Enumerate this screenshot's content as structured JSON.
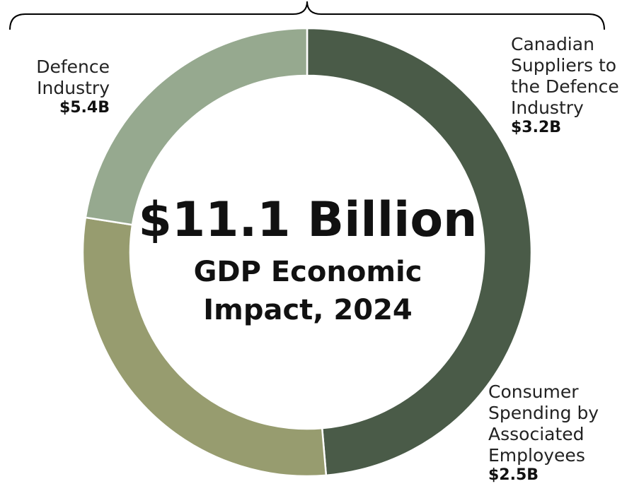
{
  "center": {
    "total": "$11.1 Billion",
    "subtitle_line1": "GDP Economic",
    "subtitle_line2": "Impact, 2024"
  },
  "chart_data": {
    "type": "pie",
    "style": "donut",
    "unit": "$B",
    "categories": [
      "Defence Industry",
      "Canadian Suppliers to the Defence Industry",
      "Consumer Spending by Associated Employees"
    ],
    "values": [
      5.4,
      3.2,
      2.5
    ],
    "value_labels": [
      "$5.4B",
      "$3.2B",
      "$2.5B"
    ],
    "label_text": [
      "Defence\nIndustry",
      "Canadian\nSuppliers to\nthe Defence\nIndustry",
      "Consumer\nSpending by\nAssociated\nEmployees"
    ],
    "colors": [
      "#4a5b48",
      "#979c6f",
      "#96a98f"
    ],
    "start_angle_deg": 0,
    "direction": "clockwise",
    "total": 11.1
  }
}
